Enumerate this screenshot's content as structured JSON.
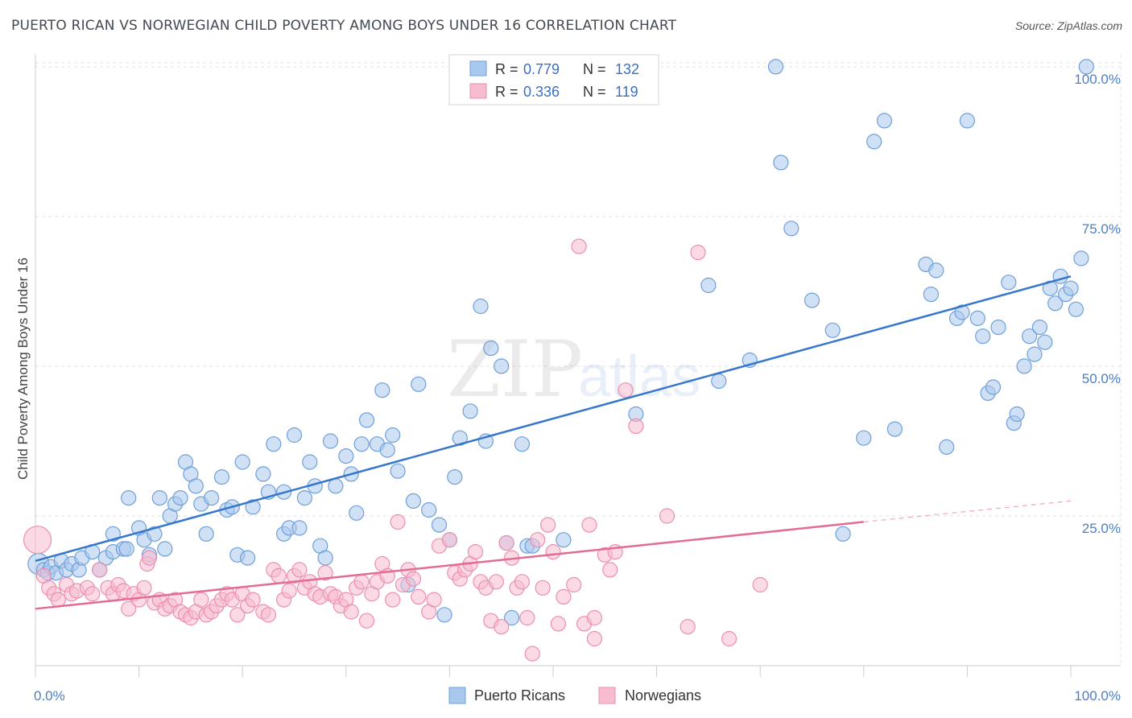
{
  "title": "PUERTO RICAN VS NORWEGIAN CHILD POVERTY AMONG BOYS UNDER 16 CORRELATION CHART",
  "source": "Source: ZipAtlas.com",
  "watermark": {
    "zip": "ZIP",
    "atlas": "atlas"
  },
  "colors": {
    "blue_fill": "#a9c8ee",
    "blue_stroke": "#6f9fd8",
    "blue_line": "#3676cc",
    "pink_fill": "#f7bcd0",
    "pink_stroke": "#eb8fae",
    "pink_line": "#e36b94",
    "grid": "#e3e3e3",
    "axis_label": "#4a7fc7"
  },
  "legend": {
    "rows": [
      {
        "r_label": "R = ",
        "r_value": "0.779",
        "n_label": "N = ",
        "n_value": "132",
        "series": "blue"
      },
      {
        "r_label": "R = ",
        "r_value": "0.336",
        "n_label": "N = ",
        "n_value": "119",
        "series": "pink"
      }
    ]
  },
  "bottom_legend": [
    "Puerto Ricans",
    "Norwegians"
  ],
  "chart_data": {
    "type": "scatter",
    "title": "PUERTO RICAN VS NORWEGIAN CHILD POVERTY AMONG BOYS UNDER 16 CORRELATION CHART",
    "xlabel": "",
    "ylabel": "Child Poverty Among Boys Under 16",
    "xlim": [
      0,
      100
    ],
    "ylim": [
      0,
      102
    ],
    "x_tick_labels": [
      "0.0%",
      "100.0%"
    ],
    "y_ticks": [
      25,
      50,
      75,
      100
    ],
    "y_tick_labels": [
      "25.0%",
      "50.0%",
      "75.0%",
      "100.0%"
    ],
    "grid": true,
    "legend_position": "top-center",
    "series": [
      {
        "name": "Puerto Ricans",
        "R": 0.779,
        "N": 132,
        "trend": {
          "x0": 0,
          "y0": 17.5,
          "x1": 100,
          "y1": 65
        },
        "points": [
          [
            0.3,
            17
          ],
          [
            0.8,
            16
          ],
          [
            1.2,
            15.5
          ],
          [
            1.5,
            16.5
          ],
          [
            2,
            15.5
          ],
          [
            2.5,
            17.5
          ],
          [
            3,
            16
          ],
          [
            3.5,
            17
          ],
          [
            4.2,
            16
          ],
          [
            4.5,
            18
          ],
          [
            5.5,
            19
          ],
          [
            6.2,
            16
          ],
          [
            6.8,
            18
          ],
          [
            7.5,
            19
          ],
          [
            7.5,
            22
          ],
          [
            8.5,
            19.5
          ],
          [
            8.8,
            19.5
          ],
          [
            9,
            28
          ],
          [
            10,
            23
          ],
          [
            10.5,
            21
          ],
          [
            11,
            18.5
          ],
          [
            11.5,
            22
          ],
          [
            12,
            28
          ],
          [
            12.5,
            19.5
          ],
          [
            13,
            25
          ],
          [
            13.5,
            27
          ],
          [
            14,
            28
          ],
          [
            14.5,
            34
          ],
          [
            15,
            32
          ],
          [
            15.5,
            30
          ],
          [
            16,
            27
          ],
          [
            16.5,
            22
          ],
          [
            17,
            28
          ],
          [
            18,
            31.5
          ],
          [
            18.5,
            26
          ],
          [
            19,
            26.5
          ],
          [
            19.5,
            18.5
          ],
          [
            20,
            34
          ],
          [
            20.5,
            18
          ],
          [
            21,
            26.5
          ],
          [
            22,
            32
          ],
          [
            22.5,
            29
          ],
          [
            23,
            37
          ],
          [
            24,
            29
          ],
          [
            24,
            22
          ],
          [
            24.5,
            23
          ],
          [
            25,
            38.5
          ],
          [
            25.5,
            23
          ],
          [
            26,
            28
          ],
          [
            26.5,
            34
          ],
          [
            27,
            30
          ],
          [
            27.5,
            20
          ],
          [
            28,
            18
          ],
          [
            28.5,
            37.5
          ],
          [
            29,
            30
          ],
          [
            30,
            35
          ],
          [
            30.5,
            32
          ],
          [
            31,
            25.5
          ],
          [
            31.5,
            37
          ],
          [
            32,
            41
          ],
          [
            33,
            37
          ],
          [
            33.5,
            46
          ],
          [
            34,
            36
          ],
          [
            34.5,
            38.5
          ],
          [
            35,
            32.5
          ],
          [
            36,
            13.5
          ],
          [
            36.5,
            27.5
          ],
          [
            37,
            47
          ],
          [
            38,
            26
          ],
          [
            39,
            23.5
          ],
          [
            39.5,
            8.5
          ],
          [
            40,
            21
          ],
          [
            40.5,
            31.5
          ],
          [
            41,
            38
          ],
          [
            42,
            42.5
          ],
          [
            43,
            60
          ],
          [
            43.5,
            37.5
          ],
          [
            44,
            53
          ],
          [
            45,
            50
          ],
          [
            45.5,
            20.5
          ],
          [
            46,
            8
          ],
          [
            47,
            37
          ],
          [
            47.5,
            20
          ],
          [
            48,
            20
          ],
          [
            51,
            21
          ],
          [
            58,
            42
          ],
          [
            65,
            63.5
          ],
          [
            66,
            47.5
          ],
          [
            69,
            51
          ],
          [
            71.5,
            100
          ],
          [
            72,
            84
          ],
          [
            73,
            73
          ],
          [
            75,
            61
          ],
          [
            77,
            56
          ],
          [
            78,
            22
          ],
          [
            80,
            38
          ],
          [
            81,
            87.5
          ],
          [
            82,
            91
          ],
          [
            83,
            39.5
          ],
          [
            86,
            67
          ],
          [
            86.5,
            62
          ],
          [
            87,
            66
          ],
          [
            88,
            36.5
          ],
          [
            89,
            58
          ],
          [
            89.5,
            59
          ],
          [
            90,
            91
          ],
          [
            91,
            58
          ],
          [
            91.5,
            55
          ],
          [
            92,
            45.5
          ],
          [
            92.5,
            46.5
          ],
          [
            93,
            56.5
          ],
          [
            94,
            64
          ],
          [
            94.5,
            40.5
          ],
          [
            94.8,
            42
          ],
          [
            95.5,
            50
          ],
          [
            96,
            55
          ],
          [
            96.5,
            52
          ],
          [
            97,
            56.5
          ],
          [
            97.5,
            54
          ],
          [
            98,
            63
          ],
          [
            98.5,
            60.5
          ],
          [
            99,
            65
          ],
          [
            99.5,
            62
          ],
          [
            100,
            63
          ],
          [
            100.5,
            59.5
          ],
          [
            101,
            68
          ],
          [
            101.5,
            100
          ]
        ]
      },
      {
        "name": "Norwegians",
        "R": 0.336,
        "N": 119,
        "trend": {
          "x0": 0,
          "y0": 9.5,
          "x1": 80,
          "y1": 24,
          "dashed_to": {
            "x": 100,
            "y": 27.5
          }
        },
        "points": [
          [
            0.2,
            21
          ],
          [
            0.8,
            15
          ],
          [
            1.3,
            13
          ],
          [
            1.8,
            12
          ],
          [
            2.2,
            11
          ],
          [
            3,
            13.5
          ],
          [
            3.5,
            12
          ],
          [
            4,
            12.5
          ],
          [
            5,
            13
          ],
          [
            5.5,
            12
          ],
          [
            6.2,
            16
          ],
          [
            7,
            13
          ],
          [
            7.5,
            12
          ],
          [
            8,
            13.5
          ],
          [
            8.5,
            12.5
          ],
          [
            9,
            9.5
          ],
          [
            9.5,
            12
          ],
          [
            10,
            11
          ],
          [
            10.5,
            13
          ],
          [
            10.8,
            17
          ],
          [
            11,
            18
          ],
          [
            11.5,
            10.5
          ],
          [
            12,
            11
          ],
          [
            12.5,
            9.5
          ],
          [
            13,
            10
          ],
          [
            13.5,
            11
          ],
          [
            14,
            9
          ],
          [
            14.5,
            8.5
          ],
          [
            15,
            8
          ],
          [
            15.5,
            9
          ],
          [
            16,
            11
          ],
          [
            16.5,
            8.5
          ],
          [
            17,
            9
          ],
          [
            17.5,
            10
          ],
          [
            18,
            11
          ],
          [
            18.5,
            12
          ],
          [
            19,
            11
          ],
          [
            19.5,
            8.5
          ],
          [
            20,
            12
          ],
          [
            20.5,
            10
          ],
          [
            21,
            11
          ],
          [
            22,
            9
          ],
          [
            22.5,
            8.5
          ],
          [
            23,
            16
          ],
          [
            23.5,
            15
          ],
          [
            24,
            11
          ],
          [
            24.5,
            12.5
          ],
          [
            25,
            15
          ],
          [
            25.5,
            16
          ],
          [
            26,
            13
          ],
          [
            26.5,
            14
          ],
          [
            27,
            12
          ],
          [
            27.5,
            11.5
          ],
          [
            28,
            15.5
          ],
          [
            28.5,
            12
          ],
          [
            29,
            11.5
          ],
          [
            29.5,
            10
          ],
          [
            30,
            11
          ],
          [
            30.5,
            9
          ],
          [
            31,
            13
          ],
          [
            31.5,
            14
          ],
          [
            32,
            7.5
          ],
          [
            32.5,
            12
          ],
          [
            33,
            14
          ],
          [
            33.5,
            17
          ],
          [
            34,
            15
          ],
          [
            34.5,
            11
          ],
          [
            35,
            24
          ],
          [
            35.5,
            13.5
          ],
          [
            36,
            16
          ],
          [
            36.5,
            14.5
          ],
          [
            37,
            11.5
          ],
          [
            38,
            9
          ],
          [
            38.5,
            11
          ],
          [
            39,
            20
          ],
          [
            40,
            21
          ],
          [
            40.5,
            15.5
          ],
          [
            41,
            14.5
          ],
          [
            41.5,
            16
          ],
          [
            42,
            17
          ],
          [
            42.5,
            19
          ],
          [
            43,
            14
          ],
          [
            43.5,
            13
          ],
          [
            44,
            7.5
          ],
          [
            44.5,
            14
          ],
          [
            45,
            6.5
          ],
          [
            45.5,
            20.5
          ],
          [
            46,
            18
          ],
          [
            46.5,
            13
          ],
          [
            47,
            14
          ],
          [
            47.5,
            8
          ],
          [
            48,
            2
          ],
          [
            48.5,
            21
          ],
          [
            49,
            13
          ],
          [
            49.5,
            23.5
          ],
          [
            50,
            19
          ],
          [
            50.5,
            7
          ],
          [
            51,
            11.5
          ],
          [
            52,
            13.5
          ],
          [
            52.5,
            70
          ],
          [
            53,
            7
          ],
          [
            53.5,
            23.5
          ],
          [
            54,
            8
          ],
          [
            54,
            4.5
          ],
          [
            55,
            18.5
          ],
          [
            55.5,
            16
          ],
          [
            56,
            19
          ],
          [
            57,
            46
          ],
          [
            58,
            40
          ],
          [
            61,
            25
          ],
          [
            63,
            6.5
          ],
          [
            64,
            69
          ],
          [
            67,
            4.5
          ],
          [
            70,
            13.5
          ]
        ]
      }
    ]
  }
}
